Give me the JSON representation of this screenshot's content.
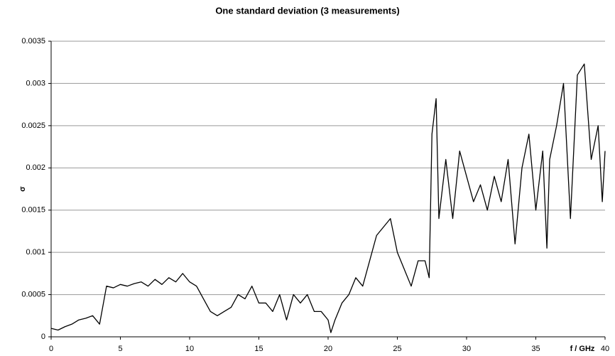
{
  "chart_data": {
    "type": "line",
    "title": "One standard deviation (3 measurements)",
    "x_label": "f / GHz",
    "y_label": "σ",
    "grid": true,
    "xlim": [
      0,
      40
    ],
    "xticks": [
      0,
      5,
      10,
      15,
      20,
      25,
      30,
      35,
      40
    ],
    "ylim": [
      0,
      0.0035
    ],
    "yticks": [
      0,
      0.0005,
      0.001,
      0.0015,
      0.002,
      0.0025,
      0.003,
      0.0035
    ],
    "x": [
      0,
      0.5,
      1,
      1.5,
      2,
      2.5,
      3,
      3.5,
      4,
      4.5,
      5,
      5.5,
      6,
      6.5,
      7,
      7.5,
      8,
      8.5,
      9,
      9.5,
      10,
      10.5,
      11,
      11.5,
      12,
      12.5,
      13,
      13.5,
      14,
      14.5,
      15,
      15.5,
      16,
      16.5,
      17,
      17.5,
      18,
      18.5,
      19,
      19.5,
      20,
      20.2,
      20.5,
      21,
      21.5,
      22,
      22.5,
      23,
      23.5,
      24,
      24.5,
      25,
      25.5,
      26,
      26.5,
      27,
      27.3,
      27.5,
      27.8,
      28,
      28.5,
      29,
      29.5,
      30,
      30.5,
      31,
      31.5,
      32,
      32.5,
      33,
      33.5,
      34,
      34.5,
      35,
      35.5,
      35.8,
      36,
      36.5,
      37,
      37.5,
      38,
      38.5,
      39,
      39.5,
      39.8,
      40
    ],
    "series": [
      {
        "color": "#000000",
        "values": [
          0.0001,
          8e-05,
          0.00012,
          0.00015,
          0.0002,
          0.00022,
          0.00025,
          0.00015,
          0.0006,
          0.00058,
          0.00062,
          0.0006,
          0.00063,
          0.00065,
          0.0006,
          0.00068,
          0.00062,
          0.0007,
          0.00065,
          0.00075,
          0.00065,
          0.0006,
          0.00045,
          0.0003,
          0.00025,
          0.0003,
          0.00035,
          0.0005,
          0.00045,
          0.0006,
          0.0004,
          0.0004,
          0.0003,
          0.0005,
          0.0002,
          0.0005,
          0.0004,
          0.0005,
          0.0003,
          0.0003,
          0.0002,
          5e-05,
          0.0002,
          0.0004,
          0.0005,
          0.0007,
          0.0006,
          0.0009,
          0.0012,
          0.0013,
          0.0014,
          0.001,
          0.0008,
          0.0006,
          0.0009,
          0.0009,
          0.0007,
          0.0024,
          0.00282,
          0.0014,
          0.0021,
          0.0014,
          0.0022,
          0.0019,
          0.0016,
          0.0018,
          0.0015,
          0.0019,
          0.0016,
          0.0021,
          0.0011,
          0.002,
          0.0024,
          0.0015,
          0.0022,
          0.00105,
          0.0021,
          0.0025,
          0.003,
          0.0014,
          0.0031,
          0.00323,
          0.0021,
          0.0025,
          0.0016,
          0.0022
        ]
      }
    ]
  }
}
